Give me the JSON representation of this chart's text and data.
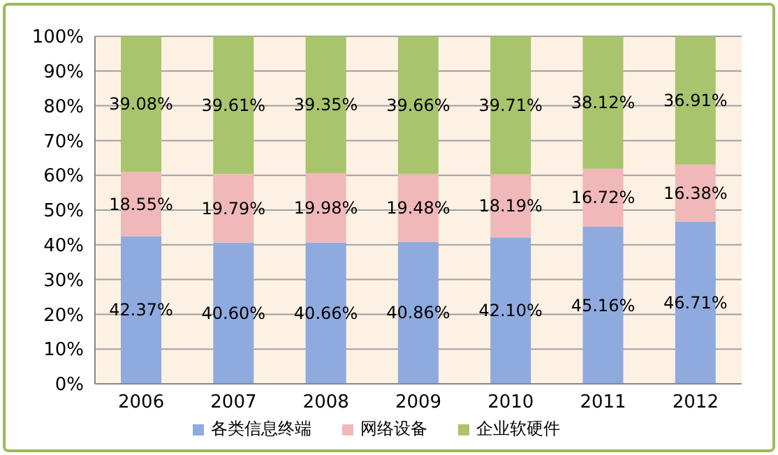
{
  "chart_data": {
    "type": "bar",
    "stacked": true,
    "categories": [
      "2006",
      "2007",
      "2008",
      "2009",
      "2010",
      "2011",
      "2012"
    ],
    "series": [
      {
        "name": "各类信息终端",
        "color": "#8eaadf",
        "values": [
          42.37,
          40.6,
          40.66,
          40.86,
          42.1,
          45.16,
          46.71
        ],
        "value_labels": [
          "42.37%",
          "40.60%",
          "40.66%",
          "40.86%",
          "42.10%",
          "45.16%",
          "46.71%"
        ]
      },
      {
        "name": "网络设备",
        "color": "#f0b8b8",
        "values": [
          18.55,
          19.79,
          19.98,
          19.48,
          18.19,
          16.72,
          16.38
        ],
        "value_labels": [
          "18.55%",
          "19.79%",
          "19.98%",
          "19.48%",
          "18.19%",
          "16.72%",
          "16.38%"
        ]
      },
      {
        "name": "企业软硬件",
        "color": "#a8c46c",
        "values": [
          39.08,
          39.61,
          39.35,
          39.66,
          39.71,
          38.12,
          36.91
        ],
        "value_labels": [
          "39.08%",
          "39.61%",
          "39.35%",
          "39.66%",
          "39.71%",
          "38.12%",
          "36.91%"
        ]
      }
    ],
    "ylim": [
      0,
      100
    ],
    "yticks": [
      {
        "value": 0,
        "label": "0%"
      },
      {
        "value": 10,
        "label": "10%"
      },
      {
        "value": 20,
        "label": "20%"
      },
      {
        "value": 30,
        "label": "30%"
      },
      {
        "value": 40,
        "label": "40%"
      },
      {
        "value": 50,
        "label": "50%"
      },
      {
        "value": 60,
        "label": "60%"
      },
      {
        "value": 70,
        "label": "70%"
      },
      {
        "value": 80,
        "label": "80%"
      },
      {
        "value": 90,
        "label": "90%"
      },
      {
        "value": 100,
        "label": "100%"
      }
    ],
    "grid": "y",
    "legend": "bottom"
  }
}
